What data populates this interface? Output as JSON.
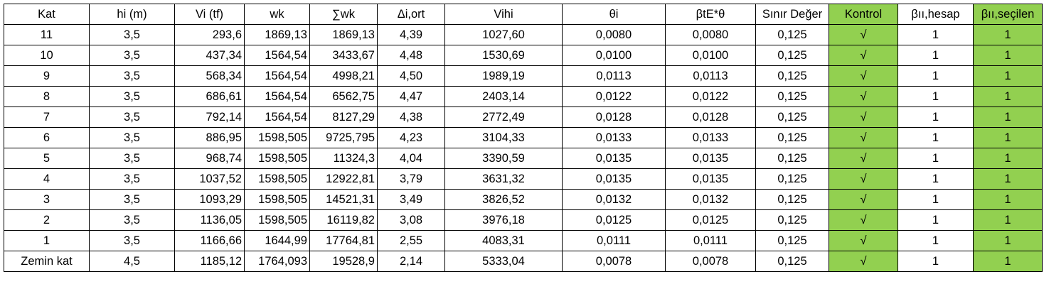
{
  "table": {
    "header": [
      "Kat",
      "hi (m)",
      "Vi (tf)",
      "wk",
      "∑wk",
      "Δi,ort",
      "Vihi",
      "θi",
      "βtE*θ",
      "Sınır Değer",
      "Kontrol",
      "βıı,hesap",
      "βıı,seçilen"
    ],
    "rows": [
      [
        "11",
        "3,5",
        "293,6",
        "1869,13",
        "1869,13",
        "4,39",
        "1027,60",
        "0,0080",
        "0,0080",
        "0,125",
        "√",
        "1",
        "1"
      ],
      [
        "10",
        "3,5",
        "437,34",
        "1564,54",
        "3433,67",
        "4,48",
        "1530,69",
        "0,0100",
        "0,0100",
        "0,125",
        "√",
        "1",
        "1"
      ],
      [
        "9",
        "3,5",
        "568,34",
        "1564,54",
        "4998,21",
        "4,50",
        "1989,19",
        "0,0113",
        "0,0113",
        "0,125",
        "√",
        "1",
        "1"
      ],
      [
        "8",
        "3,5",
        "686,61",
        "1564,54",
        "6562,75",
        "4,47",
        "2403,14",
        "0,0122",
        "0,0122",
        "0,125",
        "√",
        "1",
        "1"
      ],
      [
        "7",
        "3,5",
        "792,14",
        "1564,54",
        "8127,29",
        "4,38",
        "2772,49",
        "0,0128",
        "0,0128",
        "0,125",
        "√",
        "1",
        "1"
      ],
      [
        "6",
        "3,5",
        "886,95",
        "1598,505",
        "9725,795",
        "4,23",
        "3104,33",
        "0,0133",
        "0,0133",
        "0,125",
        "√",
        "1",
        "1"
      ],
      [
        "5",
        "3,5",
        "968,74",
        "1598,505",
        "11324,3",
        "4,04",
        "3390,59",
        "0,0135",
        "0,0135",
        "0,125",
        "√",
        "1",
        "1"
      ],
      [
        "4",
        "3,5",
        "1037,52",
        "1598,505",
        "12922,81",
        "3,79",
        "3631,32",
        "0,0135",
        "0,0135",
        "0,125",
        "√",
        "1",
        "1"
      ],
      [
        "3",
        "3,5",
        "1093,29",
        "1598,505",
        "14521,31",
        "3,49",
        "3826,52",
        "0,0132",
        "0,0132",
        "0,125",
        "√",
        "1",
        "1"
      ],
      [
        "2",
        "3,5",
        "1136,05",
        "1598,505",
        "16119,82",
        "3,08",
        "3976,18",
        "0,0125",
        "0,0125",
        "0,125",
        "√",
        "1",
        "1"
      ],
      [
        "1",
        "3,5",
        "1166,66",
        "1644,99",
        "17764,81",
        "2,55",
        "4083,31",
        "0,0111",
        "0,0111",
        "0,125",
        "√",
        "1",
        "1"
      ],
      [
        "Zemin kat",
        "4,5",
        "1185,12",
        "1764,093",
        "19528,9",
        "2,14",
        "5333,04",
        "0,0078",
        "0,0078",
        "0,125",
        "√",
        "1",
        "1"
      ]
    ]
  }
}
